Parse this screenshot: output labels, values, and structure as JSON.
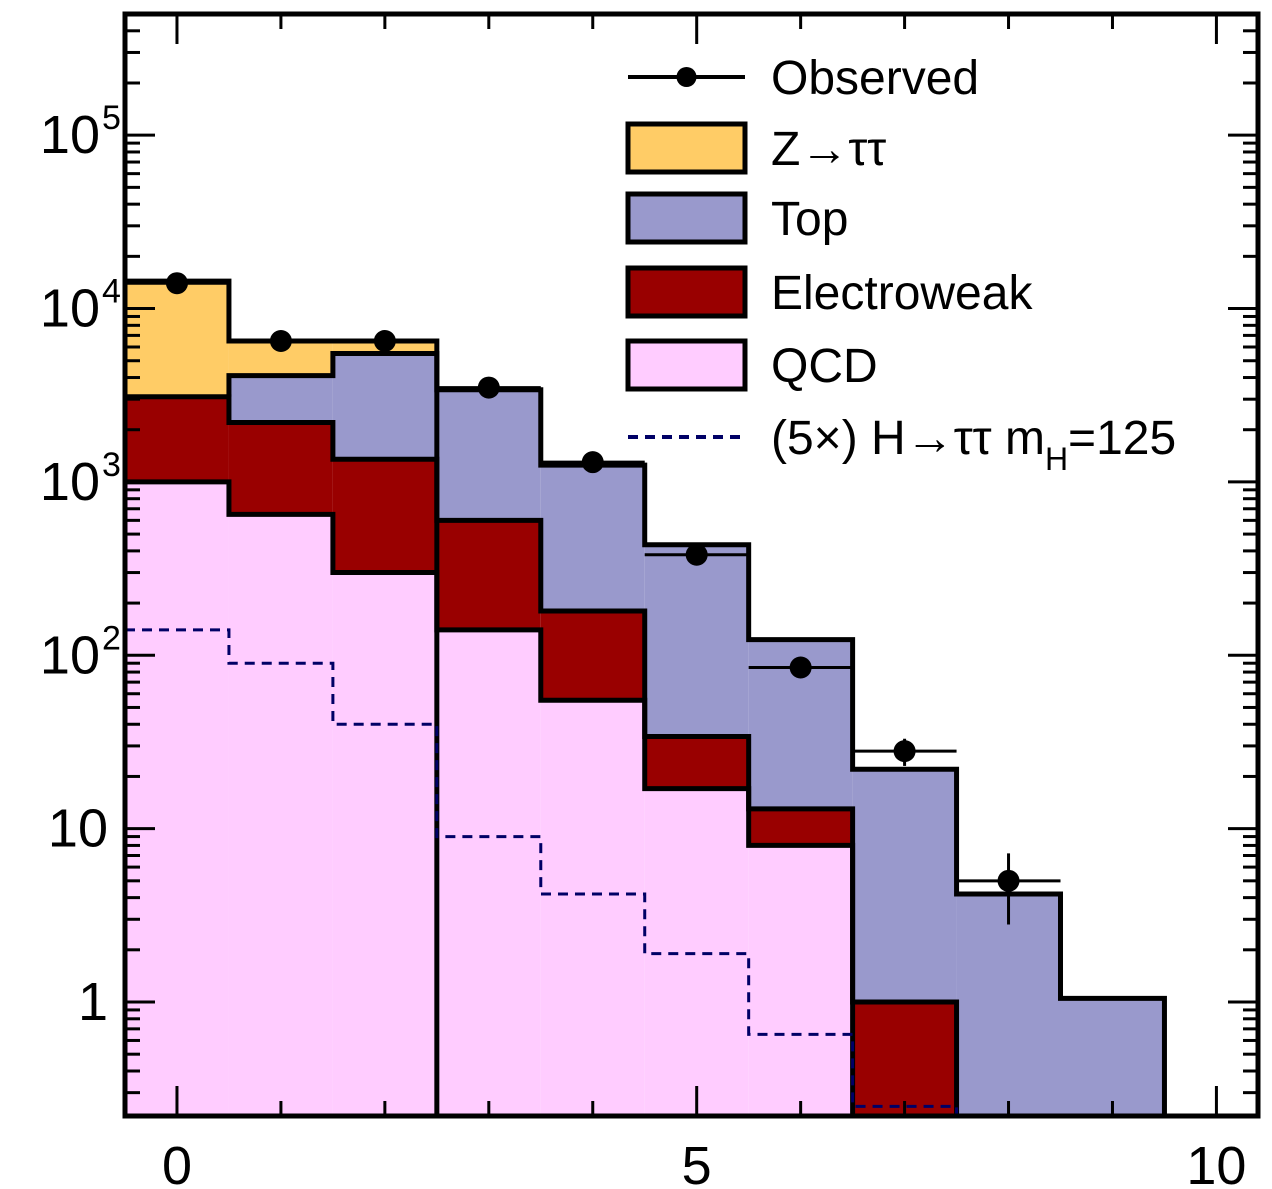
{
  "chart_data": {
    "type": "bar",
    "stacked": true,
    "log_y": true,
    "x_range": [
      -0.5,
      10.4
    ],
    "ylim": [
      0.22,
      500000
    ],
    "x_ticks": [
      {
        "value": 0,
        "label": "0"
      },
      {
        "value": 5,
        "label": "5"
      },
      {
        "value": 10,
        "label": "10"
      }
    ],
    "y_ticks": [
      {
        "value": 1,
        "label": "1",
        "exp": ""
      },
      {
        "value": 10,
        "label": "10",
        "exp": ""
      },
      {
        "value": 100,
        "label": "10",
        "exp": "2"
      },
      {
        "value": 1000,
        "label": "10",
        "exp": "3"
      },
      {
        "value": 10000,
        "label": "10",
        "exp": "4"
      },
      {
        "value": 100000,
        "label": "10",
        "exp": "5"
      }
    ],
    "bins": [
      0,
      1,
      2,
      3,
      4,
      5,
      6,
      7,
      8,
      9
    ],
    "series": [
      {
        "name": "QCD",
        "color": "#ffccff",
        "values": [
          1000,
          650,
          300,
          140,
          55,
          17,
          8,
          0,
          0,
          0
        ]
      },
      {
        "name": "Electroweak",
        "color": "#990000",
        "values": [
          2100,
          1550,
          1050,
          460,
          125,
          17,
          5,
          1,
          0,
          0
        ]
      },
      {
        "name": "Top",
        "color": "#9999cc",
        "values": [
          0,
          1900,
          4150,
          2800,
          1070,
          400,
          110,
          21,
          4.2,
          1.05
        ]
      },
      {
        "name": "Z→ττ",
        "color": "#ffcc66",
        "values": [
          11300,
          2400,
          1000,
          0,
          0,
          0,
          0,
          0,
          0,
          0
        ]
      }
    ],
    "signal": {
      "name": "(5×) H→ττ m_H=125",
      "color": "#000066",
      "values": [
        140,
        90,
        40,
        9,
        4.2,
        1.9,
        0.65,
        0.25,
        0,
        0
      ]
    },
    "observed": {
      "name": "Observed",
      "x": [
        0,
        1,
        2,
        3,
        4,
        5,
        6,
        7,
        8
      ],
      "y": [
        14000,
        6500,
        6500,
        3500,
        1300,
        380,
        85,
        28,
        5
      ],
      "y_err": [
        0,
        0,
        0,
        0,
        0,
        0,
        0,
        5,
        2.2
      ]
    },
    "legend": {
      "placement": "top-right",
      "entries": [
        {
          "label": "Observed",
          "sub": "",
          "tail": "",
          "kind": "marker",
          "color": "#000000"
        },
        {
          "label": "Z→ττ",
          "sub": "",
          "tail": "",
          "kind": "box",
          "color": "#ffcc66"
        },
        {
          "label": "Top",
          "sub": "",
          "tail": "",
          "kind": "box",
          "color": "#9999cc"
        },
        {
          "label": "Electroweak",
          "sub": "",
          "tail": "",
          "kind": "box",
          "color": "#990000"
        },
        {
          "label": "QCD",
          "sub": "",
          "tail": "",
          "kind": "box",
          "color": "#ffccff"
        },
        {
          "label": "(5×) H→ττ m",
          "sub": "H",
          "tail": "=125",
          "kind": "dash",
          "color": "#000066"
        }
      ]
    }
  }
}
